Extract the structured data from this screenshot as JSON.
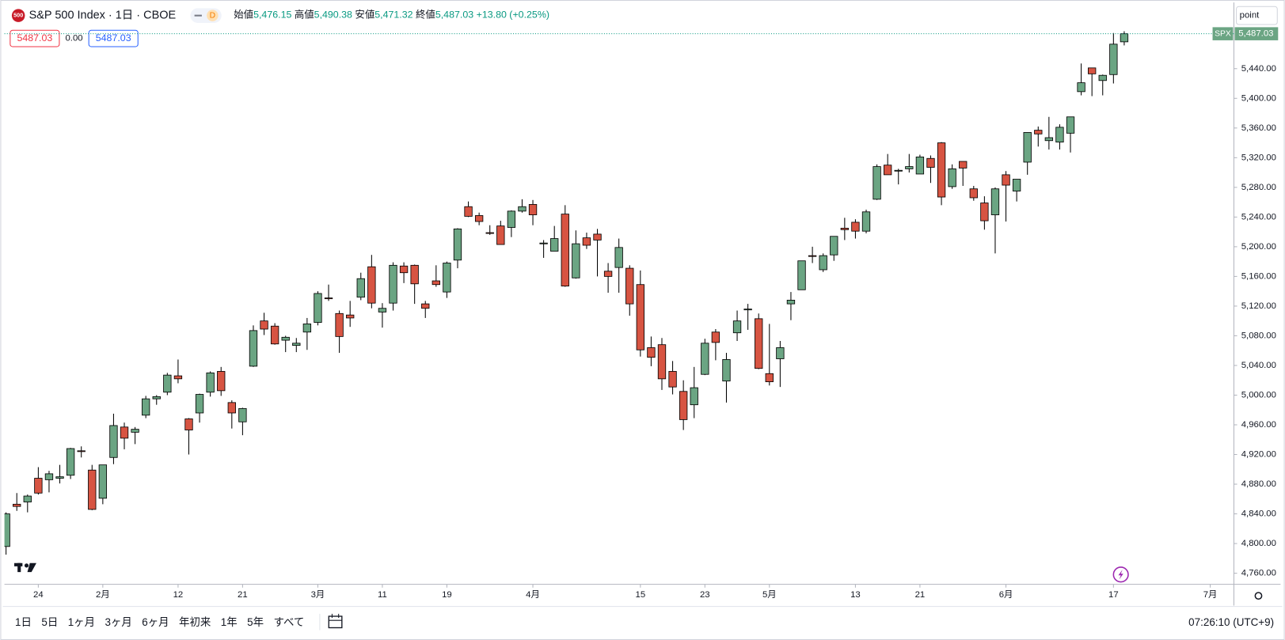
{
  "chart_data": {
    "type": "candlestick",
    "symbol_badge": "500",
    "title": "S&P 500 Index",
    "interval": "1日",
    "exchange": "CBOE",
    "mode_badge": "D",
    "ohlc_header": [
      {
        "label": "始値",
        "value": "5,476.15"
      },
      {
        "label": "高値",
        "value": "5,490.38"
      },
      {
        "label": "安値",
        "value": "5,471.32"
      },
      {
        "label": "終値",
        "value": "5,487.03"
      }
    ],
    "change": "+13.80 (+0.25%)",
    "trade_boxes": {
      "sell": "5487.03",
      "spread": "0.00",
      "buy": "5487.03"
    },
    "price_label": {
      "symbol": "SPX",
      "value": "5,487.03"
    },
    "scale_button": "point",
    "up_color": "#6ba583",
    "down_color": "#d75442",
    "open": [
      4796,
      4853,
      4856,
      4888,
      4886,
      4888,
      4892,
      4925,
      4899,
      4861,
      4916,
      4957,
      4950,
      4973,
      4995,
      5004,
      5026,
      4968,
      4976,
      5004,
      5032,
      4990,
      4964,
      5039,
      5100,
      5093,
      5074,
      5067,
      5085,
      5098,
      5131,
      5110,
      5108,
      5132,
      5173,
      5112,
      5124,
      5174,
      5175,
      5123,
      5154,
      5139,
      5182,
      5254,
      5242,
      5219,
      5228,
      5226,
      5248,
      5257,
      5204,
      5194,
      5244,
      5158,
      5212,
      5217,
      5167,
      5172,
      5171,
      5149,
      5064,
      5068,
      5032,
      5005,
      4987,
      5028,
      5085,
      5019,
      5084,
      5115,
      5103,
      5029,
      5049,
      5123,
      5142,
      5188,
      5169,
      5189,
      5225,
      5233,
      5221,
      5264,
      5310,
      5303,
      5305,
      5298,
      5319,
      5340,
      5281,
      5315,
      5278,
      5259,
      5243,
      5297,
      5275,
      5314,
      5357,
      5343,
      5341,
      5353,
      5409,
      5441,
      5424,
      5432,
      5476.15
    ],
    "high": [
      4842,
      4868,
      4866,
      4903,
      4898,
      4906,
      4929,
      4931,
      4906,
      4906,
      4975,
      4963,
      4957,
      4999,
      5000,
      5030,
      5048,
      4969,
      5002,
      5032,
      5038,
      4993,
      4983,
      5094,
      5111,
      5097,
      5080,
      5077,
      5104,
      5140,
      5149,
      5114,
      5127,
      5165,
      5189,
      5124,
      5179,
      5179,
      5176,
      5127,
      5175,
      5180,
      5225,
      5261,
      5246,
      5229,
      5235,
      5249,
      5264,
      5263,
      5209,
      5228,
      5256,
      5222,
      5219,
      5224,
      5178,
      5211,
      5175,
      5168,
      5079,
      5077,
      5046,
      5020,
      5038,
      5076,
      5089,
      5057,
      5114,
      5123,
      5110,
      5096,
      5073,
      5139,
      5181,
      5200,
      5191,
      5214,
      5239,
      5237,
      5250,
      5311,
      5325,
      5305,
      5325,
      5324,
      5323,
      5341,
      5311,
      5315,
      5282,
      5268,
      5280,
      5302,
      5291,
      5354,
      5362,
      5375,
      5365,
      5375,
      5447,
      5441,
      5432,
      5488,
      5490.38
    ],
    "low": [
      4785,
      4844,
      4842,
      4866,
      4869,
      4881,
      4887,
      4916,
      4845,
      4853,
      4907,
      4927,
      4934,
      4969,
      4987,
      5000,
      5016,
      4920,
      4963,
      4998,
      4999,
      4955,
      4946,
      5038,
      5081,
      5068,
      5058,
      5058,
      5061,
      5094,
      5127,
      5057,
      5092,
      5128,
      5117,
      5091,
      5114,
      5151,
      5123,
      5104,
      5146,
      5131,
      5171,
      5240,
      5229,
      5216,
      5203,
      5213,
      5246,
      5229,
      5185,
      5194,
      5146,
      5157,
      5197,
      5160,
      5138,
      5138,
      5107,
      5052,
      5039,
      5007,
      5001,
      4953,
      4969,
      5027,
      5047,
      4990,
      5073,
      5088,
      5035,
      5013,
      5011,
      5101,
      5142,
      5178,
      5166,
      5181,
      5209,
      5211,
      5218,
      5263,
      5297,
      5284,
      5300,
      5298,
      5286,
      5256,
      5278,
      5282,
      5262,
      5223,
      5191,
      5234,
      5261,
      5297,
      5335,
      5331,
      5331,
      5327,
      5404,
      5403,
      5404,
      5420,
      5471.32
    ],
    "close": [
      4840,
      4850,
      4864,
      4868,
      4894,
      4890,
      4928,
      4924,
      4846,
      4906,
      4959,
      4942,
      4954,
      4995,
      4998,
      5027,
      5022,
      4953,
      5001,
      5030,
      5006,
      4976,
      4982,
      5087,
      5089,
      5069,
      5078,
      5070,
      5096,
      5137,
      5130,
      5079,
      5104,
      5157,
      5124,
      5117,
      5175,
      5165,
      5150,
      5117,
      5149,
      5178,
      5224,
      5241,
      5234,
      5218,
      5203,
      5248,
      5254,
      5243,
      5205,
      5211,
      5147,
      5204,
      5202,
      5209,
      5160,
      5199,
      5123,
      5061,
      5051,
      5022,
      5011,
      4967,
      5010,
      5070,
      5071,
      5048,
      5100,
      5116,
      5036,
      5018,
      5064,
      5128,
      5181,
      5187,
      5188,
      5214,
      5223,
      5221,
      5247,
      5308,
      5297,
      5303,
      5308,
      5321,
      5307,
      5267,
      5305,
      5306,
      5266,
      5235,
      5278,
      5283,
      5291,
      5354,
      5352,
      5347,
      5361,
      5375,
      5421,
      5433,
      5431,
      5473,
      5487.03
    ],
    "xlim": [
      -0.15,
      114.2
    ],
    "xticks": [
      {
        "value": 3,
        "label": "24"
      },
      {
        "value": 9,
        "label": "2月"
      },
      {
        "value": 16,
        "label": "12"
      },
      {
        "value": 22,
        "label": "21"
      },
      {
        "value": 29,
        "label": "3月"
      },
      {
        "value": 35,
        "label": "11"
      },
      {
        "value": 41,
        "label": "19"
      },
      {
        "value": 49,
        "label": "4月"
      },
      {
        "value": 59,
        "label": "15"
      },
      {
        "value": 65,
        "label": "23"
      },
      {
        "value": 71,
        "label": "5月"
      },
      {
        "value": 79,
        "label": "13"
      },
      {
        "value": 85,
        "label": "21"
      },
      {
        "value": 93,
        "label": "6月"
      },
      {
        "value": 103,
        "label": "17"
      },
      {
        "value": 112,
        "label": "7月"
      }
    ],
    "ylim": [
      4745,
      5527
    ],
    "yticks": [
      {
        "value": 4760,
        "label": "4,760.00"
      },
      {
        "value": 4800,
        "label": "4,800.00"
      },
      {
        "value": 4840,
        "label": "4,840.00"
      },
      {
        "value": 4880,
        "label": "4,880.00"
      },
      {
        "value": 4920,
        "label": "4,920.00"
      },
      {
        "value": 4960,
        "label": "4,960.00"
      },
      {
        "value": 5000,
        "label": "5,000.00"
      },
      {
        "value": 5040,
        "label": "5,040.00"
      },
      {
        "value": 5080,
        "label": "5,080.00"
      },
      {
        "value": 5120,
        "label": "5,120.00"
      },
      {
        "value": 5160,
        "label": "5,160.00"
      },
      {
        "value": 5200,
        "label": "5,200.00"
      },
      {
        "value": 5240,
        "label": "5,240.00"
      },
      {
        "value": 5280,
        "label": "5,280.00"
      },
      {
        "value": 5320,
        "label": "5,320.00"
      },
      {
        "value": 5360,
        "label": "5,360.00"
      },
      {
        "value": 5400,
        "label": "5,400.00"
      },
      {
        "value": 5440,
        "label": "5,440.00"
      }
    ],
    "grid": false,
    "ranges": [
      "1日",
      "5日",
      "1ヶ月",
      "3ヶ月",
      "6ヶ月",
      "年初来",
      "1年",
      "5年",
      "すべて"
    ],
    "clock": "07:26:10 (UTC+9)"
  }
}
